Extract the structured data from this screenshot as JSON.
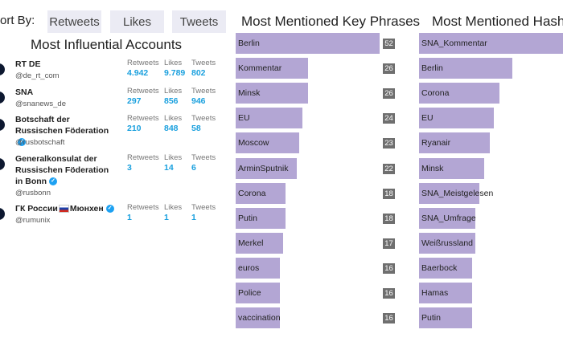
{
  "sort": {
    "label": "ort By:",
    "options": [
      "Retweets",
      "Likes",
      "Tweets"
    ]
  },
  "accounts": {
    "title": "Most Influential Accounts",
    "stat_labels": {
      "retweets": "Retweets",
      "likes": "Likes",
      "tweets": "Tweets"
    },
    "items": [
      {
        "name": "RT DE",
        "handle": "@de_rt_com",
        "verified": false,
        "retweets": "4.942",
        "likes": "9.789",
        "tweets": "802"
      },
      {
        "name": "SNA",
        "handle": "@snanews_de",
        "verified": false,
        "retweets": "297",
        "likes": "856",
        "tweets": "946"
      },
      {
        "name": "Botschaft der Russischen Föderation",
        "handle": "@rusbotschaft",
        "verified": true,
        "retweets": "210",
        "likes": "848",
        "tweets": "58"
      },
      {
        "name": "Generalkonsulat der Russischen Föderation in Bonn",
        "handle": "@rusbonn",
        "verified": true,
        "retweets": "3",
        "likes": "14",
        "tweets": "6"
      },
      {
        "name_prefix": "ГК России",
        "name_suffix": "Мюнхен",
        "handle": "@rumunix",
        "verified": true,
        "flag": true,
        "retweets": "1",
        "likes": "1",
        "tweets": "1"
      }
    ]
  },
  "key_phrases": {
    "title": "Most Mentioned Key Phrases",
    "chart_data": {
      "type": "bar",
      "orientation": "horizontal",
      "categories": [
        "Berlin",
        "Kommentar",
        "Minsk",
        "EU",
        "Moscow",
        "ArminSputnik",
        "Corona",
        "Putin",
        "Merkel",
        "euros",
        "Police",
        "vaccination"
      ],
      "values": [
        52,
        26,
        26,
        24,
        23,
        22,
        18,
        18,
        17,
        16,
        16,
        16
      ]
    }
  },
  "hashtags": {
    "title": "Most Mentioned Hashta",
    "chart_data": {
      "type": "bar",
      "orientation": "horizontal",
      "categories": [
        "SNA_Kommentar",
        "Berlin",
        "Corona",
        "EU",
        "Ryanair",
        "Minsk",
        "SNA_Meistgelesen",
        "SNA_Umfrage",
        "Weißrussland",
        "Baerbock",
        "Hamas",
        "Putin"
      ],
      "relative_values": [
        1.0,
        0.65,
        0.56,
        0.52,
        0.49,
        0.45,
        0.42,
        0.39,
        0.39,
        0.37,
        0.37,
        0.37
      ]
    }
  }
}
